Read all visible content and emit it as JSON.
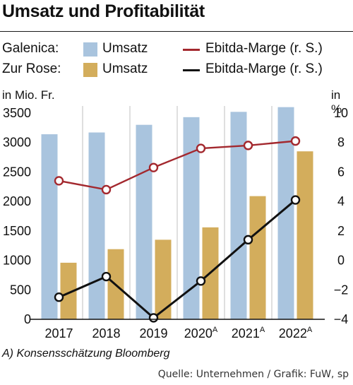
{
  "title": "Umsatz und Profitabilität",
  "legend": [
    {
      "company": "Galenica:",
      "bar_label": "Umsatz",
      "bar_color": "#a9c4de",
      "line_label": "Ebitda-Marge (r. S.)",
      "line_color": "#a3282e"
    },
    {
      "company": "Zur Rose:",
      "bar_label": "Umsatz",
      "bar_color": "#d3ad5c",
      "line_label": "Ebitda-Marge (r. S.)",
      "line_color": "#111111"
    }
  ],
  "left_unit": "in Mio. Fr.",
  "right_unit": "in %",
  "footnote": "A) Konsensschätzung Bloomberg",
  "source": "Quelle: Unternehmen / Grafik: FuW, sp",
  "chart_data": {
    "type": "bar",
    "categories": [
      "2017",
      "2018",
      "2019",
      "2020",
      "2021",
      "2022"
    ],
    "category_superscripts": [
      "",
      "",
      "",
      "A",
      "A",
      "A"
    ],
    "ylim_left": [
      0,
      3500
    ],
    "yticks_left": [
      0,
      500,
      1000,
      1500,
      2000,
      2500,
      3000,
      3500
    ],
    "ylim_right": [
      -4,
      10
    ],
    "yticks_right": [
      -4,
      -2,
      0,
      2,
      4,
      6,
      8,
      10
    ],
    "grid": "vertical",
    "series": [
      {
        "name": "Umsatz",
        "company": "Galenica",
        "kind": "bar",
        "axis": "left",
        "color": "#a9c4de",
        "values": [
          3140,
          3170,
          3300,
          3430,
          3520,
          3600
        ]
      },
      {
        "name": "Umsatz",
        "company": "Zur Rose",
        "kind": "bar",
        "axis": "left",
        "color": "#d3ad5c",
        "values": [
          960,
          1190,
          1350,
          1560,
          2090,
          2850
        ]
      },
      {
        "name": "Ebitda-Marge (r. S.)",
        "company": "Galenica",
        "kind": "line",
        "axis": "right",
        "color": "#a3282e",
        "values": [
          5.4,
          4.8,
          6.3,
          7.6,
          7.8,
          8.1
        ]
      },
      {
        "name": "Ebitda-Marge (r. S.)",
        "company": "Zur Rose",
        "kind": "line",
        "axis": "right",
        "color": "#111111",
        "values": [
          -2.5,
          -1.1,
          -3.9,
          -1.4,
          1.4,
          4.1
        ]
      }
    ]
  }
}
